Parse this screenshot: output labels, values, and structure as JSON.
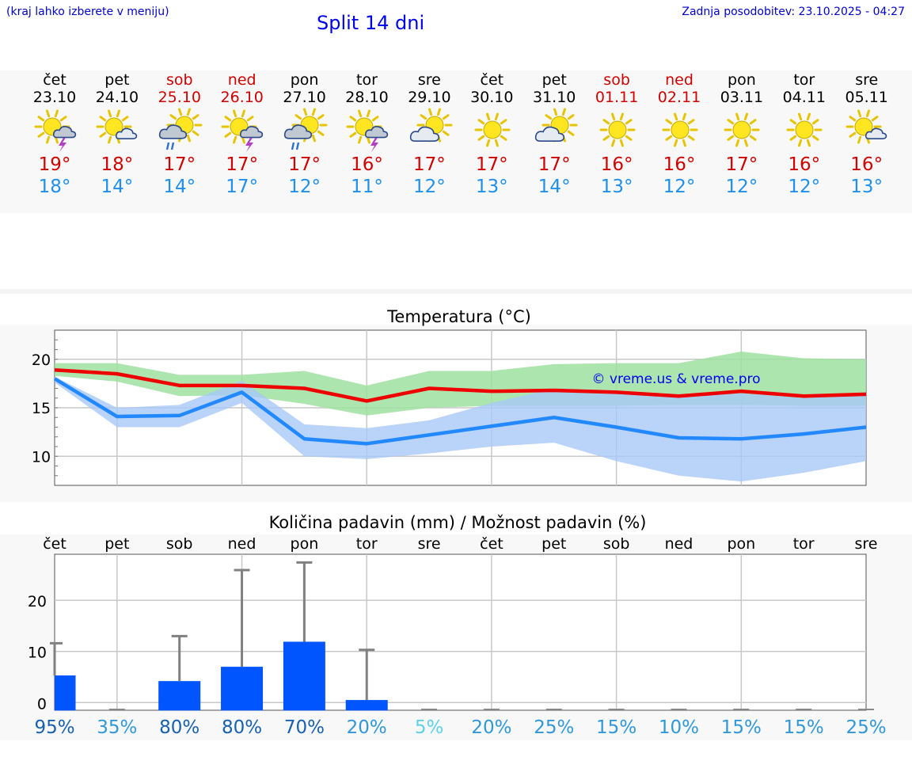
{
  "header": {
    "menu_hint": "(kraj lahko izberete v meniju)",
    "title": "Split 14 dni",
    "last_update": "Zadnja posodobitev: 23.10.2025 - 04:27"
  },
  "days": [
    {
      "name": "čet",
      "date": "23.10",
      "max": "19°",
      "min": "18°",
      "weekend": false,
      "icon": "sun-cloud-storm-icon",
      "sym": "storm"
    },
    {
      "name": "pet",
      "date": "24.10",
      "max": "18°",
      "min": "14°",
      "weekend": false,
      "icon": "sun-small-cloud-icon",
      "sym": "smallcloud"
    },
    {
      "name": "sob",
      "date": "25.10",
      "max": "17°",
      "min": "14°",
      "weekend": true,
      "icon": "sun-cloud-rain-icon",
      "sym": "rain"
    },
    {
      "name": "ned",
      "date": "26.10",
      "max": "17°",
      "min": "17°",
      "weekend": true,
      "icon": "sun-cloud-storm-icon",
      "sym": "storm"
    },
    {
      "name": "pon",
      "date": "27.10",
      "max": "17°",
      "min": "12°",
      "weekend": false,
      "icon": "sun-cloud-rain-icon",
      "sym": "rainbig"
    },
    {
      "name": "tor",
      "date": "28.10",
      "max": "16°",
      "min": "11°",
      "weekend": false,
      "icon": "sun-storm-icon",
      "sym": "storm"
    },
    {
      "name": "sre",
      "date": "29.10",
      "max": "17°",
      "min": "12°",
      "weekend": false,
      "icon": "sun-cloud-icon",
      "sym": "cloud"
    },
    {
      "name": "čet",
      "date": "30.10",
      "max": "17°",
      "min": "13°",
      "weekend": false,
      "icon": "sun-icon",
      "sym": "sun"
    },
    {
      "name": "pet",
      "date": "31.10",
      "max": "17°",
      "min": "14°",
      "weekend": false,
      "icon": "sun-cloud-icon",
      "sym": "cloud"
    },
    {
      "name": "sob",
      "date": "01.11",
      "max": "16°",
      "min": "13°",
      "weekend": true,
      "icon": "sun-icon",
      "sym": "sun"
    },
    {
      "name": "ned",
      "date": "02.11",
      "max": "16°",
      "min": "12°",
      "weekend": true,
      "icon": "sun-icon",
      "sym": "sun"
    },
    {
      "name": "pon",
      "date": "03.11",
      "max": "17°",
      "min": "12°",
      "weekend": false,
      "icon": "sun-icon",
      "sym": "sun"
    },
    {
      "name": "tor",
      "date": "04.11",
      "max": "16°",
      "min": "12°",
      "weekend": false,
      "icon": "sun-icon",
      "sym": "sun"
    },
    {
      "name": "sre",
      "date": "05.11",
      "max": "16°",
      "min": "13°",
      "weekend": false,
      "icon": "sun-small-cloud-icon",
      "sym": "smallcloud"
    }
  ],
  "chart_data": [
    {
      "type": "line",
      "title": "Temperatura (°C)",
      "watermark": "© vreme.us & vreme.pro",
      "ylim": [
        7,
        23
      ],
      "yticks": [
        "10",
        "15",
        "20"
      ],
      "grid": true,
      "series": [
        {
          "role": "max",
          "color": "#ee0000",
          "values": [
            18.9,
            18.5,
            17.3,
            17.3,
            17.0,
            15.7,
            17.0,
            16.7,
            16.8,
            16.6,
            16.2,
            16.7,
            16.2,
            16.4
          ]
        },
        {
          "role": "min",
          "color": "#2288ff",
          "values": [
            18.0,
            14.1,
            14.2,
            16.6,
            11.8,
            11.3,
            12.2,
            13.1,
            14.0,
            13.0,
            11.9,
            11.8,
            12.3,
            13.0
          ]
        }
      ],
      "bands": [
        {
          "role": "max-range",
          "color": "#9fe0a0",
          "low": [
            18.3,
            17.7,
            16.2,
            16.3,
            15.4,
            14.2,
            15.0,
            15.2,
            15.2,
            15.2,
            15.3,
            15.3,
            15.2,
            15.2
          ],
          "high": [
            19.6,
            19.6,
            18.4,
            18.4,
            18.8,
            17.3,
            18.8,
            18.8,
            19.5,
            19.6,
            19.6,
            20.8,
            20.1,
            20.0
          ]
        },
        {
          "role": "min-range",
          "color": "#a8c8f8",
          "low": [
            17.6,
            13.0,
            13.0,
            15.5,
            10.0,
            9.7,
            10.3,
            11.0,
            11.4,
            9.5,
            8.0,
            7.4,
            8.3,
            9.5
          ],
          "high": [
            18.2,
            15.0,
            15.3,
            17.8,
            13.3,
            12.9,
            13.7,
            15.5,
            17.0,
            16.8,
            16.1,
            16.5,
            16.0,
            16.3
          ]
        }
      ]
    },
    {
      "type": "bar",
      "title": "Količina padavin (mm) / Možnost padavin (%)",
      "categories": [
        "čet",
        "pet",
        "sob",
        "ned",
        "pon",
        "tor",
        "sre",
        "čet",
        "pet",
        "sob",
        "ned",
        "pon",
        "tor",
        "sre"
      ],
      "ylim": [
        -1.5,
        29
      ],
      "yticks": [
        "0",
        "10",
        "20"
      ],
      "bar_color": "#0055ff",
      "values": [
        5.3,
        0,
        4.2,
        7.0,
        11.9,
        0.5,
        0,
        0,
        0,
        0,
        0,
        0,
        0,
        0
      ],
      "error_high": [
        11.6,
        0,
        13.0,
        25.9,
        27.4,
        10.3,
        0,
        0,
        0,
        0,
        0,
        0,
        0,
        0
      ],
      "probability": [
        "95%",
        "35%",
        "80%",
        "80%",
        "70%",
        "20%",
        "5%",
        "20%",
        "25%",
        "15%",
        "10%",
        "15%",
        "15%",
        "25%"
      ],
      "probability_values": [
        95,
        35,
        80,
        80,
        70,
        20,
        5,
        20,
        25,
        15,
        10,
        15,
        15,
        25
      ]
    }
  ]
}
